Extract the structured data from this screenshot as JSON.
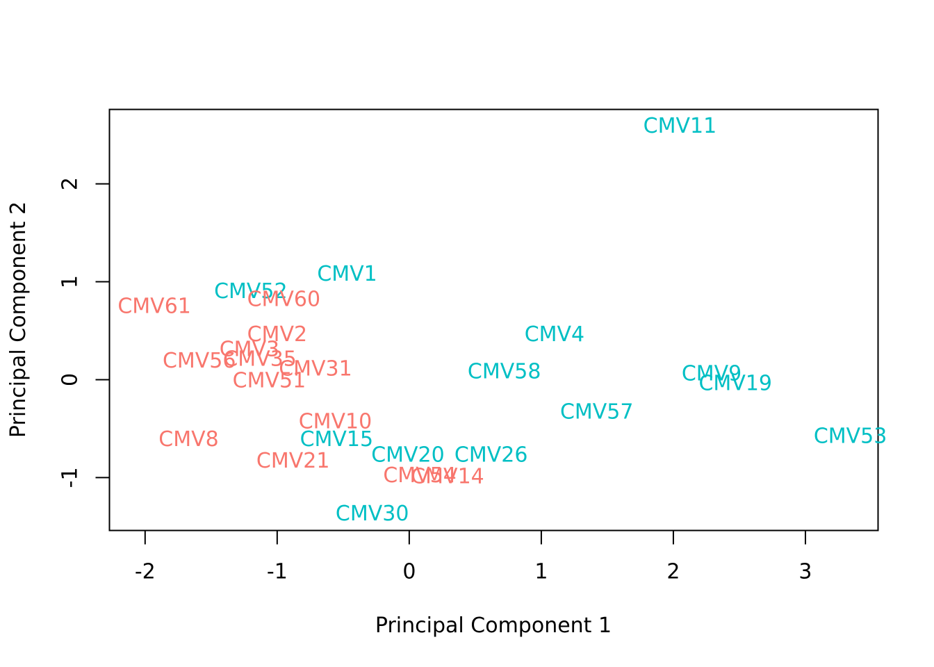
{
  "chart_data": {
    "type": "scatter",
    "title": "",
    "xlabel": "Principal Component 1",
    "ylabel": "Principal Component 2",
    "xlim": [
      -2.27,
      3.55
    ],
    "ylim": [
      -1.54,
      2.76
    ],
    "xticks": [
      -2,
      -1,
      0,
      1,
      2,
      3
    ],
    "yticks": [
      -1,
      0,
      1,
      2
    ],
    "xtick_labels": [
      "-2",
      "-1",
      "0",
      "1",
      "2",
      "3"
    ],
    "ytick_labels": [
      "-1",
      "0",
      "1",
      "2"
    ],
    "grid": false,
    "colors": {
      "group1": "#F8766D",
      "group2": "#00BFC4"
    },
    "points": [
      {
        "label": "CMV11",
        "x": 2.05,
        "y": 2.59,
        "group": "group2"
      },
      {
        "label": "CMV1",
        "x": -0.47,
        "y": 1.08,
        "group": "group2"
      },
      {
        "label": "CMV52",
        "x": -1.2,
        "y": 0.9,
        "group": "group2"
      },
      {
        "label": "CMV60",
        "x": -0.95,
        "y": 0.82,
        "group": "group1"
      },
      {
        "label": "CMV61",
        "x": -1.93,
        "y": 0.75,
        "group": "group1"
      },
      {
        "label": "CMV2",
        "x": -1.0,
        "y": 0.46,
        "group": "group1"
      },
      {
        "label": "CMV4",
        "x": 1.1,
        "y": 0.46,
        "group": "group2"
      },
      {
        "label": "CMV3",
        "x": -1.21,
        "y": 0.31,
        "group": "group1"
      },
      {
        "label": "CMV35",
        "x": -1.13,
        "y": 0.21,
        "group": "group1"
      },
      {
        "label": "CMV56",
        "x": -1.59,
        "y": 0.19,
        "group": "group1"
      },
      {
        "label": "CMV31",
        "x": -0.71,
        "y": 0.11,
        "group": "group1"
      },
      {
        "label": "CMV58",
        "x": 0.72,
        "y": 0.08,
        "group": "group2"
      },
      {
        "label": "CMV9",
        "x": 2.29,
        "y": 0.06,
        "group": "group2"
      },
      {
        "label": "CMV51",
        "x": -1.06,
        "y": -0.01,
        "group": "group1"
      },
      {
        "label": "CMV19",
        "x": 2.47,
        "y": -0.04,
        "group": "group2"
      },
      {
        "label": "CMV57",
        "x": 1.42,
        "y": -0.33,
        "group": "group2"
      },
      {
        "label": "CMV10",
        "x": -0.56,
        "y": -0.43,
        "group": "group1"
      },
      {
        "label": "CMV53",
        "x": 3.34,
        "y": -0.58,
        "group": "group2"
      },
      {
        "label": "CMV8",
        "x": -1.67,
        "y": -0.61,
        "group": "group1"
      },
      {
        "label": "CMV15",
        "x": -0.55,
        "y": -0.61,
        "group": "group2"
      },
      {
        "label": "CMV21",
        "x": -0.88,
        "y": -0.83,
        "group": "group1"
      },
      {
        "label": "CMV20",
        "x": -0.01,
        "y": -0.77,
        "group": "group2"
      },
      {
        "label": "CMV26",
        "x": 0.62,
        "y": -0.77,
        "group": "group2"
      },
      {
        "label": "CMV54",
        "x": 0.08,
        "y": -0.98,
        "group": "group1"
      },
      {
        "label": "CMV14",
        "x": 0.29,
        "y": -0.99,
        "group": "group1"
      },
      {
        "label": "CMV30",
        "x": -0.28,
        "y": -1.37,
        "group": "group2"
      }
    ]
  }
}
